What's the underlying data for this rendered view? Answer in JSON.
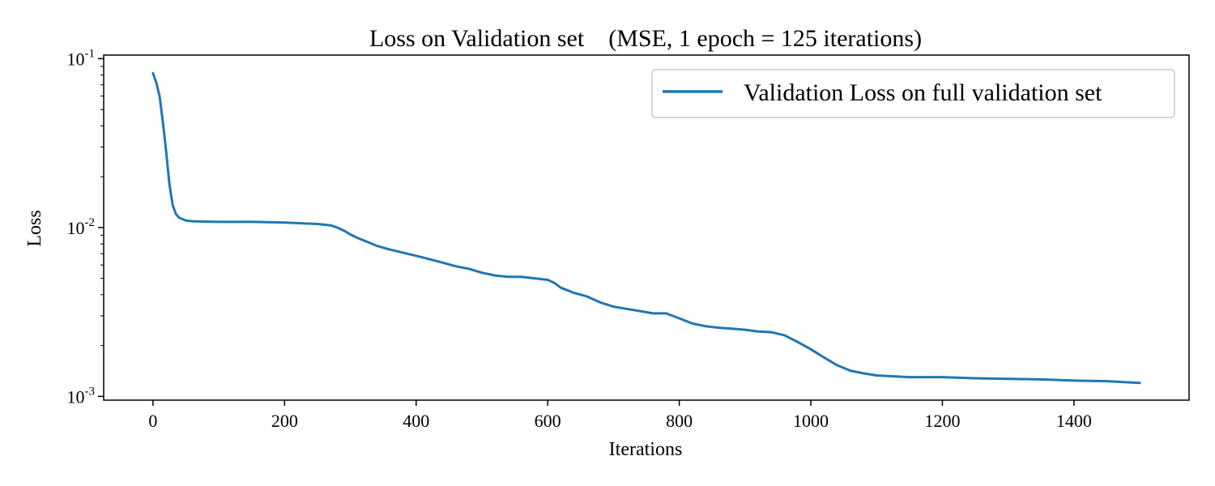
{
  "chart_data": {
    "type": "line",
    "title": "Loss on Validation set    (MSE, 1 epoch = 125 iterations)",
    "xlabel": "Iterations",
    "ylabel": "Loss",
    "xlim": [
      -75,
      1575
    ],
    "ylim": [
      0.00095,
      0.105
    ],
    "yscale": "log",
    "grid": false,
    "legend_position": "top-right",
    "line_color": "#1f77b4",
    "x_ticks": [
      0,
      200,
      400,
      600,
      800,
      1000,
      1200,
      1400
    ],
    "x_tick_labels": [
      "0",
      "200",
      "400",
      "600",
      "800",
      "1000",
      "1200",
      "1400"
    ],
    "y_ticks": [
      {
        "value": 0.1,
        "base": "10",
        "exp": "-1"
      },
      {
        "value": 0.01,
        "base": "10",
        "exp": "-2"
      },
      {
        "value": 0.001,
        "base": "10",
        "exp": "-3"
      }
    ],
    "series": [
      {
        "name": "Validation Loss on full validation set",
        "x": [
          0,
          5,
          10,
          15,
          20,
          25,
          30,
          35,
          40,
          45,
          50,
          60,
          75,
          100,
          150,
          200,
          250,
          270,
          280,
          290,
          300,
          310,
          320,
          340,
          360,
          380,
          400,
          420,
          440,
          460,
          480,
          500,
          520,
          540,
          560,
          580,
          600,
          610,
          620,
          640,
          660,
          680,
          700,
          720,
          740,
          760,
          780,
          800,
          820,
          840,
          860,
          880,
          900,
          920,
          940,
          960,
          980,
          1000,
          1020,
          1040,
          1060,
          1080,
          1100,
          1150,
          1200,
          1250,
          1300,
          1350,
          1400,
          1450,
          1500
        ],
        "values": [
          0.082,
          0.072,
          0.06,
          0.042,
          0.028,
          0.018,
          0.0135,
          0.012,
          0.0114,
          0.0112,
          0.011,
          0.0109,
          0.01085,
          0.0108,
          0.0108,
          0.0107,
          0.0105,
          0.0103,
          0.01,
          0.0096,
          0.0091,
          0.0087,
          0.0084,
          0.0078,
          0.0074,
          0.0071,
          0.0068,
          0.0065,
          0.0062,
          0.0059,
          0.0057,
          0.0054,
          0.0052,
          0.0051,
          0.0051,
          0.005,
          0.0049,
          0.0047,
          0.0044,
          0.0041,
          0.0039,
          0.0036,
          0.0034,
          0.0033,
          0.0032,
          0.0031,
          0.0031,
          0.0029,
          0.0027,
          0.0026,
          0.00255,
          0.00252,
          0.00248,
          0.00242,
          0.0024,
          0.0023,
          0.0021,
          0.0019,
          0.0017,
          0.00153,
          0.00142,
          0.00137,
          0.00133,
          0.0013,
          0.0013,
          0.00128,
          0.00127,
          0.00126,
          0.00124,
          0.00123,
          0.0012
        ]
      }
    ]
  }
}
